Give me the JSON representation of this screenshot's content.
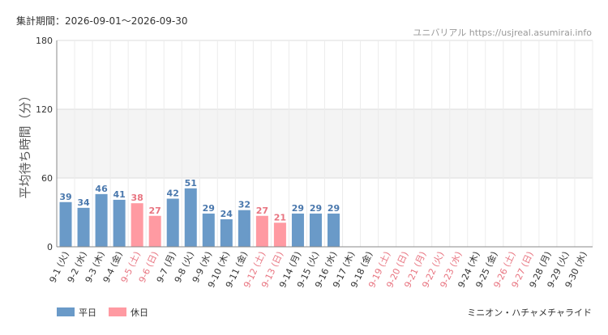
{
  "header": {
    "period": "集計期間：2026-09-01〜2026-09-30",
    "site": "ユニバリアル  https://usjreal.asumirai.info"
  },
  "footer": {
    "attraction": "ミニオン・ハチャメチャライド"
  },
  "chart_data": {
    "type": "bar",
    "ylabel": "平均待ち時間（分）",
    "ylim": [
      0,
      180
    ],
    "yticks": [
      0,
      60,
      120,
      180
    ],
    "shaded_band": [
      60,
      120
    ],
    "grid": true,
    "legend_position": "bottom-left",
    "legend": [
      {
        "name": "平日",
        "color": "#6a9ac8"
      },
      {
        "name": "休日",
        "color": "#ff9aa2"
      }
    ],
    "colors": {
      "weekday_bar": "#6a9ac8",
      "holiday_bar": "#ff9aa2",
      "weekday_text": "#4a78ad",
      "holiday_text": "#e87480",
      "weekday_label": "#333333",
      "holiday_label": "#e87480"
    },
    "categories": [
      "9-1 (火)",
      "9-2 (水)",
      "9-3 (木)",
      "9-4 (金)",
      "9-5 (土)",
      "9-6 (日)",
      "9-7 (月)",
      "9-8 (火)",
      "9-9 (水)",
      "9-10 (木)",
      "9-11 (金)",
      "9-12 (土)",
      "9-13 (日)",
      "9-14 (月)",
      "9-15 (火)",
      "9-16 (水)",
      "9-17 (木)",
      "9-18 (金)",
      "9-19 (土)",
      "9-20 (日)",
      "9-21 (月)",
      "9-22 (火)",
      "9-23 (水)",
      "9-24 (木)",
      "9-25 (金)",
      "9-26 (土)",
      "9-27 (日)",
      "9-28 (月)",
      "9-29 (火)",
      "9-30 (水)"
    ],
    "holiday": [
      false,
      false,
      false,
      false,
      true,
      true,
      false,
      false,
      false,
      false,
      false,
      true,
      true,
      false,
      false,
      false,
      false,
      false,
      true,
      true,
      true,
      true,
      true,
      false,
      false,
      true,
      true,
      false,
      false,
      false
    ],
    "values": [
      39,
      34,
      46,
      41,
      38,
      27,
      42,
      51,
      29,
      24,
      32,
      27,
      21,
      29,
      29,
      29,
      null,
      null,
      null,
      null,
      null,
      null,
      null,
      null,
      null,
      null,
      null,
      null,
      null,
      null
    ]
  }
}
